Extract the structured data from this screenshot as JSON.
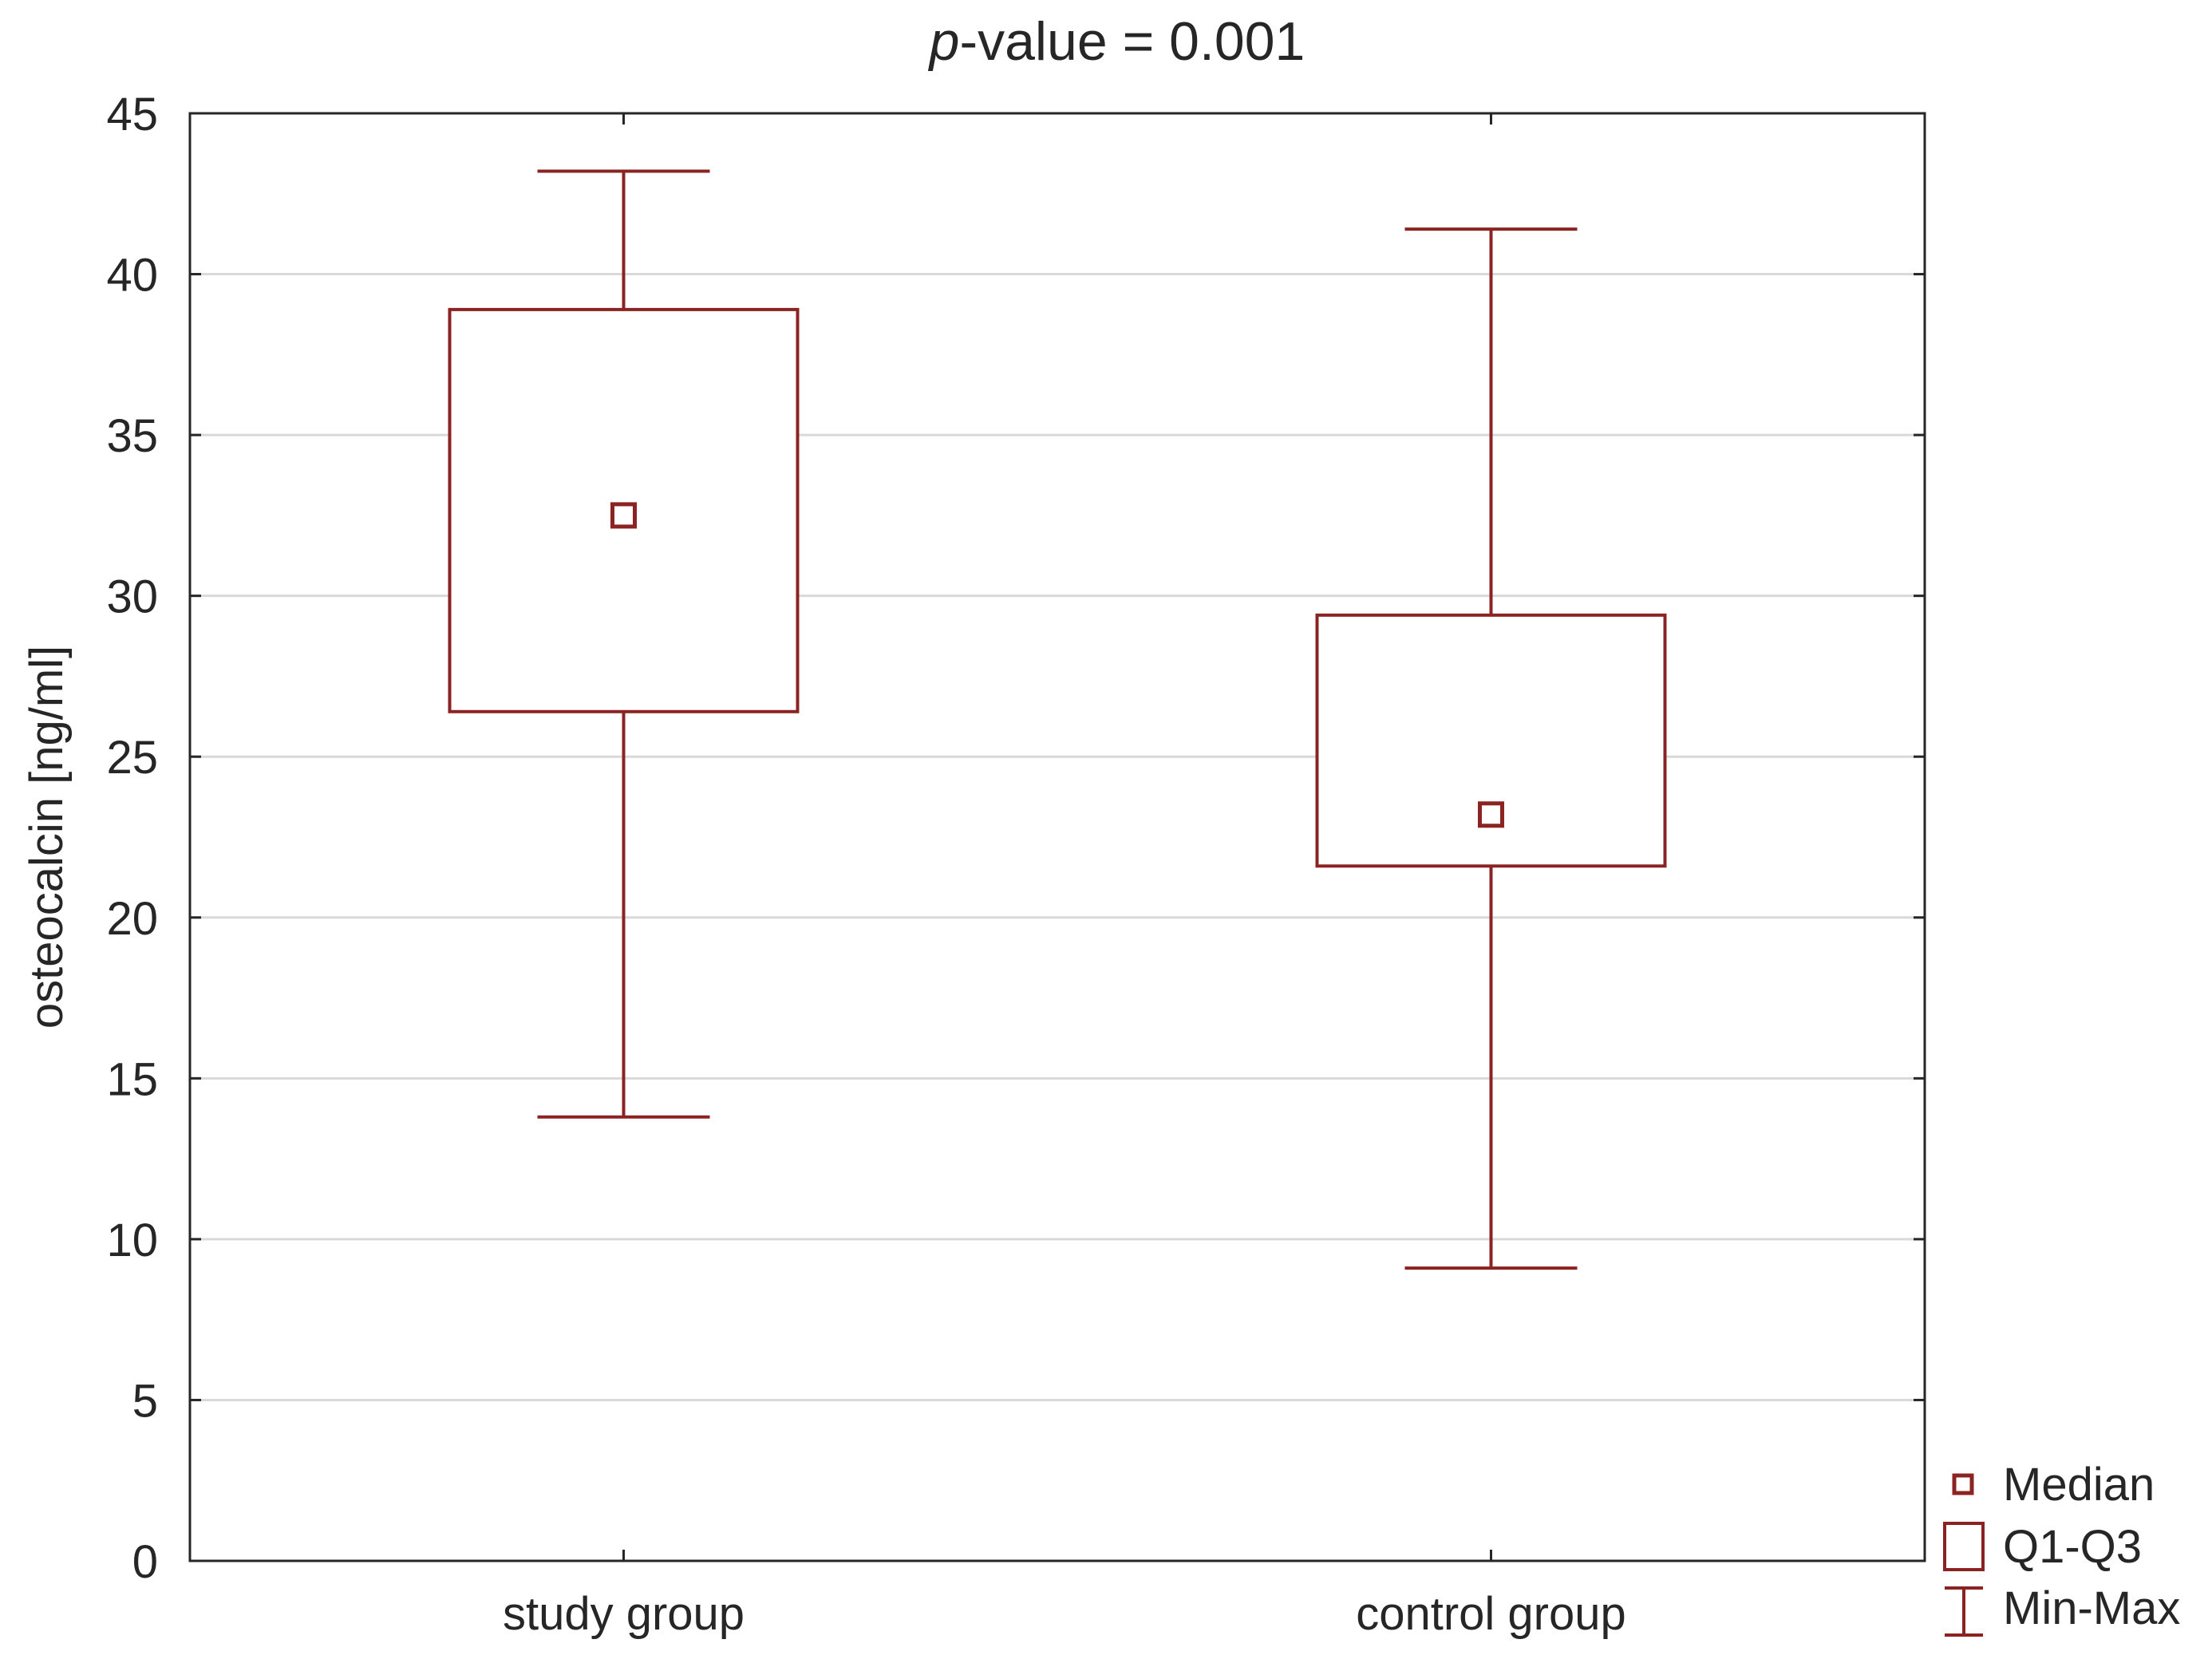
{
  "chart_data": {
    "type": "box",
    "title": {
      "italic_prefix": "p",
      "rest": "-value = 0.001"
    },
    "xlabel": "",
    "ylabel": "osteocalcin [ng/ml]",
    "ylim": [
      0,
      45
    ],
    "yticks": [
      0,
      5,
      10,
      15,
      20,
      25,
      30,
      35,
      40,
      45
    ],
    "grid": true,
    "categories": [
      "study group",
      "control group"
    ],
    "boxes": [
      {
        "category": "study group",
        "min": 13.8,
        "q1": 26.4,
        "median": 32.5,
        "q3": 38.9,
        "max": 43.2
      },
      {
        "category": "control group",
        "min": 9.1,
        "q1": 21.6,
        "median": 23.2,
        "q3": 29.4,
        "max": 41.4
      }
    ],
    "legend": {
      "position": "bottom-right",
      "items": [
        "Median",
        "Q1-Q3",
        "Min-Max"
      ]
    },
    "colors": {
      "series": "#8b2323",
      "grid": "#d9d9d9",
      "axis": "#262626"
    }
  }
}
